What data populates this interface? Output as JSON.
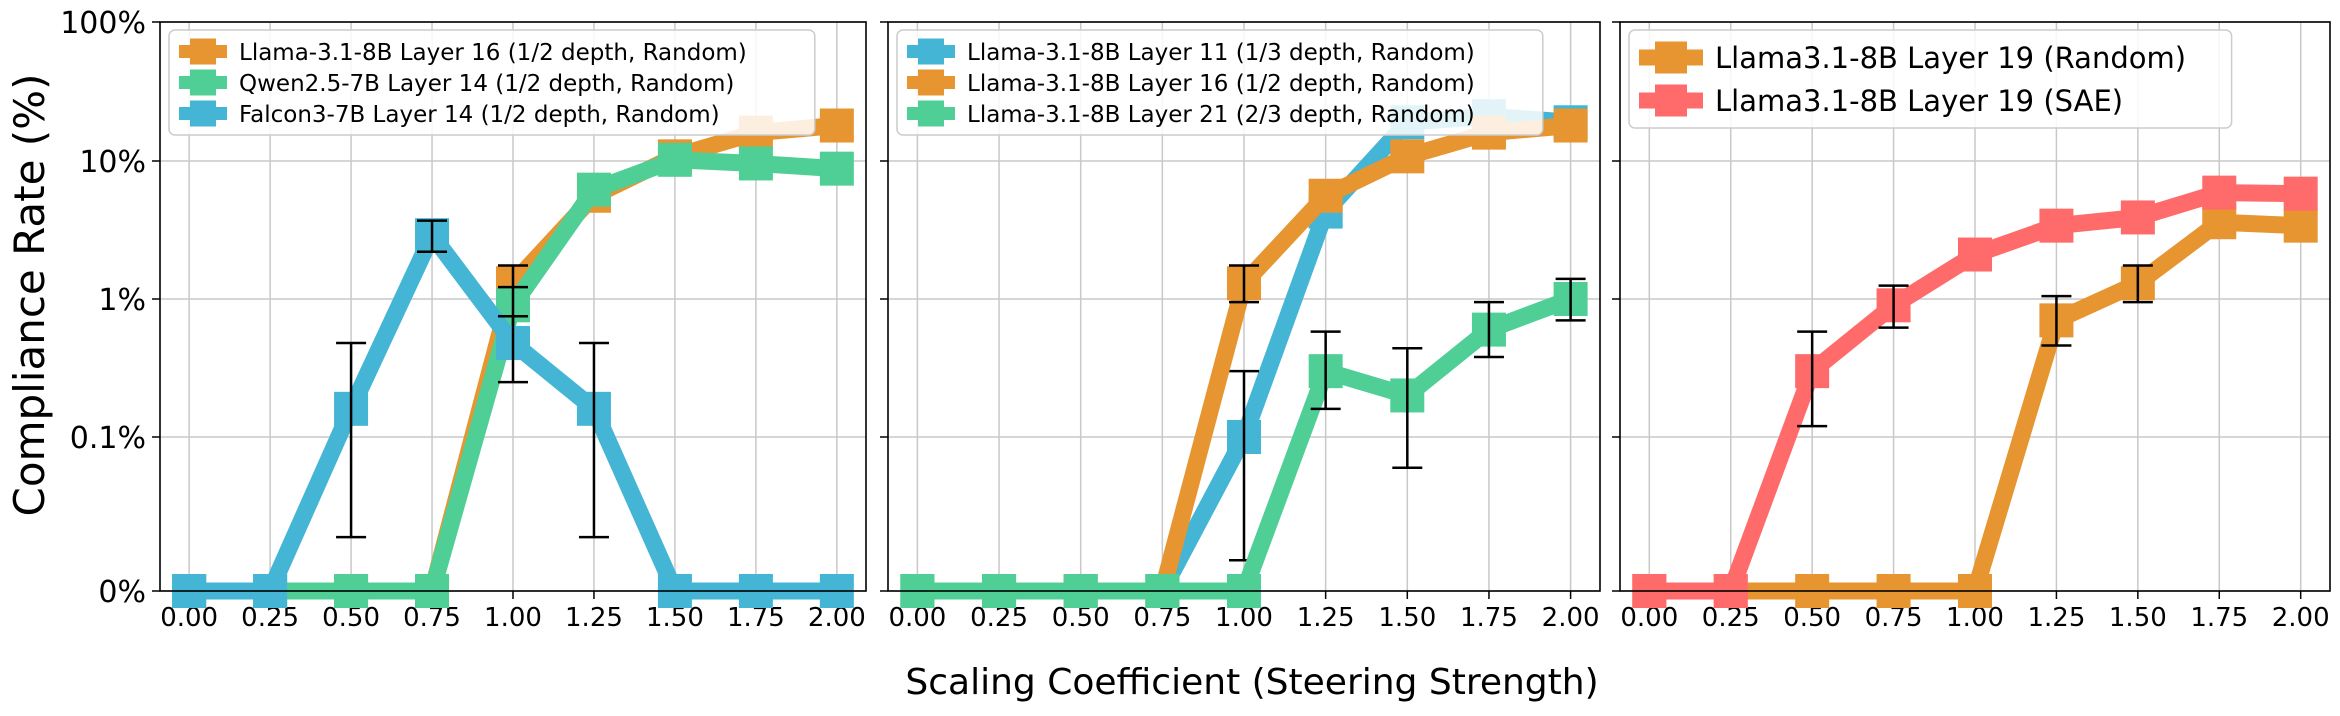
{
  "figure": {
    "ylabel": "Compliance Rate (%)",
    "xlabel": "Scaling Coefficient (Steering Strength)"
  },
  "chart_data": [
    {
      "type": "line",
      "xlabel": "Scaling Coefficient (Steering Strength)",
      "ylabel": "Compliance Rate (%)",
      "yscale": "symlog",
      "y_tick_labels": [
        "0%",
        "0.1%",
        "1%",
        "10%",
        "100%"
      ],
      "x_tick_labels": [
        "0.00",
        "0.25",
        "0.50",
        "0.75",
        "1.00",
        "1.25",
        "1.50",
        "1.75",
        "2.00"
      ],
      "x": [
        0,
        0.25,
        0.5,
        0.75,
        1.0,
        1.25,
        1.5,
        1.75,
        2.0
      ],
      "grid": true,
      "legend_position": "top-left",
      "series": [
        {
          "name": "Llama-3.1-8B Layer 16 (1/2 depth, Random)",
          "color": "#E69530",
          "values": [
            0,
            0,
            0,
            0,
            1.3,
            5.6,
            10.8,
            16,
            18
          ],
          "err": [
            null,
            null,
            null,
            null,
            [
              0.95,
              1.75
            ],
            null,
            null,
            null,
            null
          ]
        },
        {
          "name": "Qwen2.5-7B Layer 14 (1/2 depth, Random)",
          "color": "#4FCF95",
          "values": [
            0,
            0,
            0,
            0,
            0.9,
            6.2,
            10.2,
            9.6,
            8.8
          ],
          "err": [
            null,
            null,
            null,
            null,
            [
              0.62,
              1.22
            ],
            null,
            null,
            null,
            null
          ]
        },
        {
          "name": "Falcon3-7B Layer 14 (1/2 depth, Random)",
          "color": "#45B5D6",
          "values": [
            0,
            0,
            0.16,
            2.9,
            0.48,
            0.16,
            0,
            0,
            0
          ],
          "err": [
            null,
            null,
            [
              0.035,
              0.48
            ],
            [
              2.2,
              3.7
            ],
            [
              0.25,
              0.75
            ],
            [
              0.035,
              0.48
            ],
            null,
            null,
            null
          ]
        }
      ]
    },
    {
      "type": "line",
      "yscale": "symlog",
      "x": [
        0,
        0.25,
        0.5,
        0.75,
        1.0,
        1.25,
        1.5,
        1.75,
        2.0
      ],
      "x_tick_labels": [
        "0.00",
        "0.25",
        "0.50",
        "0.75",
        "1.00",
        "1.25",
        "1.50",
        "1.75",
        "2.00"
      ],
      "grid": true,
      "legend_position": "top-left",
      "series": [
        {
          "name": "Llama-3.1-8B Layer 11 (1/3 depth, Random)",
          "color": "#45B5D6",
          "values": [
            0,
            0,
            0,
            0,
            0.1,
            4.3,
            19,
            21,
            19
          ],
          "err": [
            null,
            null,
            null,
            null,
            [
              0.02,
              0.3
            ],
            null,
            null,
            null,
            null
          ]
        },
        {
          "name": "Llama-3.1-8B Layer 16 (1/2 depth, Random)",
          "color": "#E69530",
          "values": [
            0,
            0,
            0,
            0,
            1.3,
            5.6,
            10.8,
            16,
            18
          ],
          "err": [
            null,
            null,
            null,
            null,
            [
              0.95,
              1.75
            ],
            null,
            null,
            null,
            null
          ]
        },
        {
          "name": "Llama-3.1-8B Layer 21 (2/3 depth, Random)",
          "color": "#4FCF95",
          "values": [
            0,
            0,
            0,
            0,
            0,
            0.3,
            0.2,
            0.6,
            1.0
          ],
          "err": [
            null,
            null,
            null,
            null,
            null,
            [
              0.16,
              0.58
            ],
            [
              0.08,
              0.44
            ],
            [
              0.38,
              0.95
            ],
            [
              0.7,
              1.4
            ]
          ]
        }
      ]
    },
    {
      "type": "line",
      "yscale": "symlog",
      "x": [
        0,
        0.25,
        0.5,
        0.75,
        1.0,
        1.25,
        1.5,
        1.75,
        2.0
      ],
      "x_tick_labels": [
        "0.00",
        "0.25",
        "0.50",
        "0.75",
        "1.00",
        "1.25",
        "1.50",
        "1.75",
        "2.00"
      ],
      "grid": true,
      "legend_position": "top-left",
      "series": [
        {
          "name": "Llama3.1-8B Layer 19 (Random)",
          "color": "#E69530",
          "values": [
            0,
            0,
            0,
            0,
            0,
            0.7,
            1.3,
            3.6,
            3.4
          ],
          "err": [
            null,
            null,
            null,
            null,
            null,
            [
              0.46,
              1.05
            ],
            [
              0.95,
              1.75
            ],
            null,
            null
          ]
        },
        {
          "name": "Llama3.1-8B Layer 19 (SAE)",
          "color": "#FF6B6B",
          "values": [
            0,
            0,
            0.3,
            0.9,
            2.1,
            3.4,
            3.9,
            5.9,
            5.8
          ],
          "err": [
            null,
            null,
            [
              0.12,
              0.58
            ],
            [
              0.62,
              1.25
            ],
            null,
            null,
            null,
            null,
            null
          ]
        }
      ]
    }
  ]
}
